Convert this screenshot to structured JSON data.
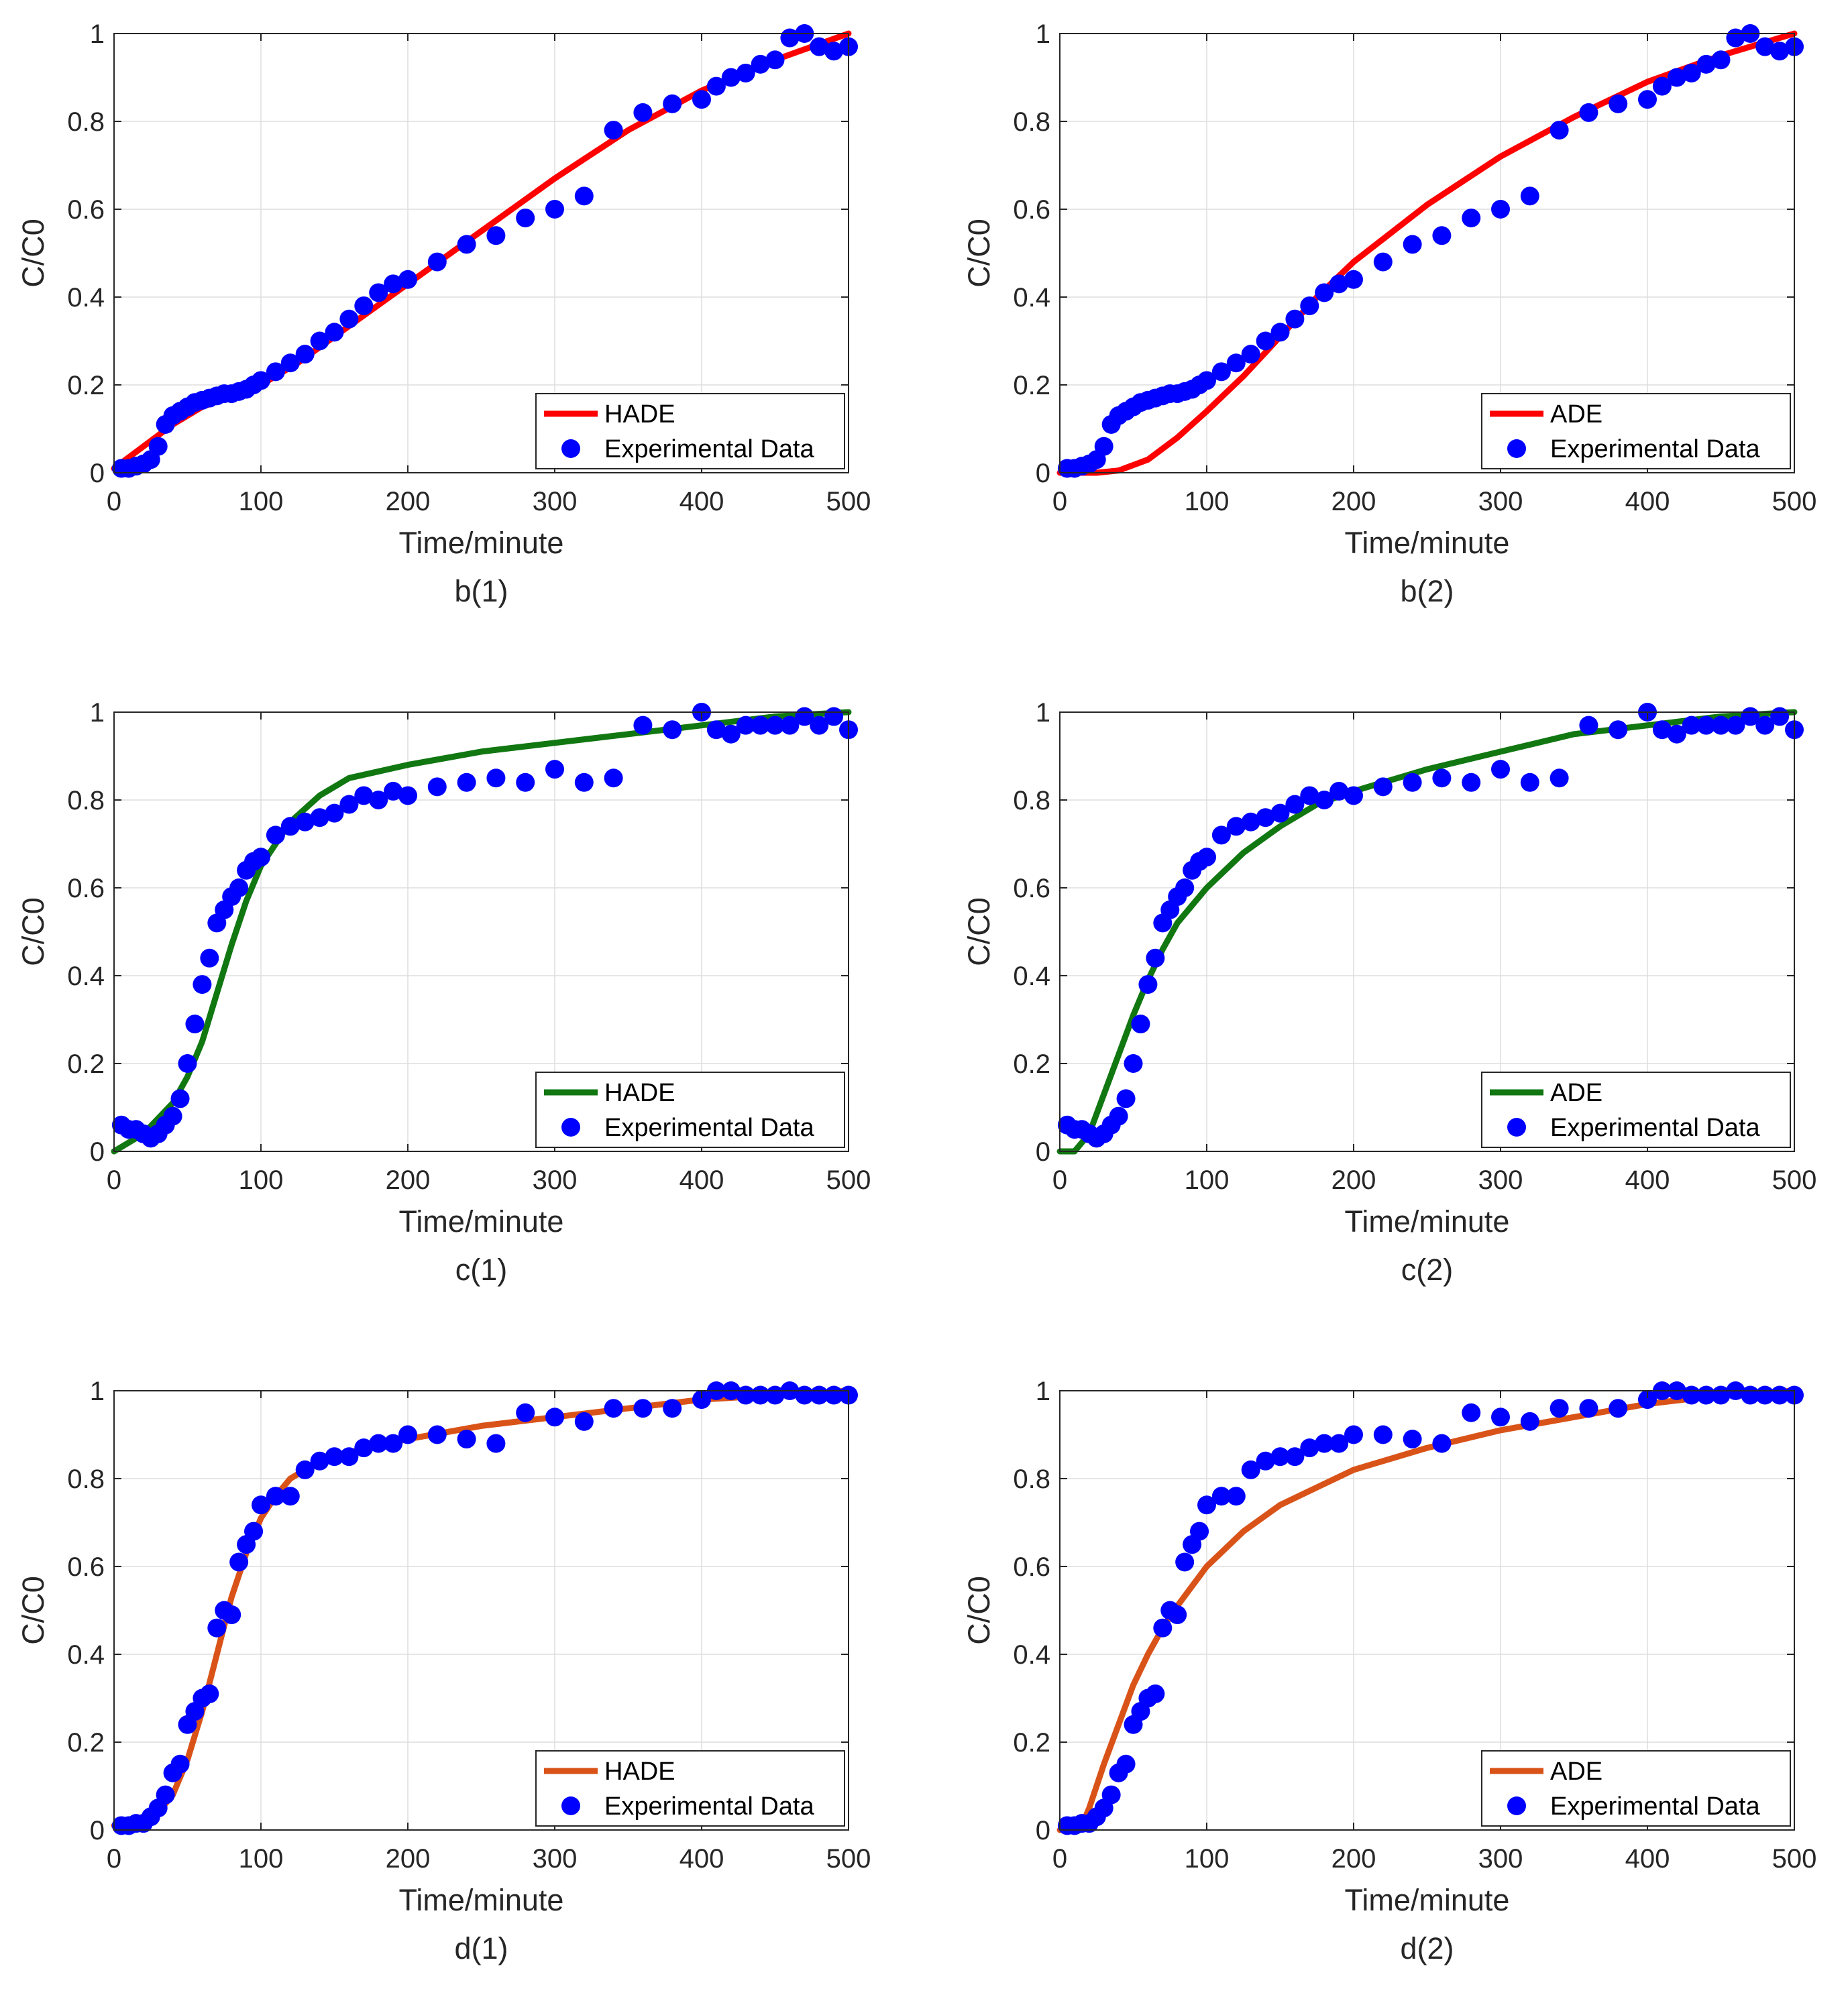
{
  "colors": {
    "red": "#ff0000",
    "green": "#117711",
    "orange": "#d95319",
    "marker": "#0000ff",
    "grid": "#dedede",
    "axis": "#262626"
  },
  "chart_data": [
    {
      "type": "line+scatter",
      "caption": "b(1)",
      "xlabel": "Time/minute",
      "ylabel": "C/C0",
      "xlim": [
        0,
        500
      ],
      "ylim": [
        0,
        1
      ],
      "xticks": [
        0,
        100,
        200,
        300,
        400,
        500
      ],
      "yticks": [
        0,
        0.2,
        0.4,
        0.6,
        0.8,
        1
      ],
      "grid": true,
      "legend_position": "bottom-right",
      "line": {
        "name": "HADE",
        "color_key": "red",
        "x": [
          0,
          20,
          40,
          60,
          80,
          100,
          125,
          150,
          200,
          250,
          300,
          350,
          400,
          450,
          500
        ],
        "y": [
          0.01,
          0.06,
          0.11,
          0.15,
          0.175,
          0.2,
          0.25,
          0.31,
          0.43,
          0.55,
          0.67,
          0.78,
          0.87,
          0.94,
          1.0
        ]
      },
      "points": {
        "name": "Experimental Data",
        "color_key": "marker",
        "x": [
          5,
          10,
          15,
          20,
          25,
          30,
          35,
          40,
          45,
          50,
          55,
          60,
          65,
          70,
          75,
          80,
          85,
          90,
          95,
          100,
          110,
          120,
          130,
          140,
          150,
          160,
          170,
          180,
          190,
          200,
          220,
          240,
          260,
          280,
          300,
          320,
          340,
          360,
          380,
          400,
          410,
          420,
          430,
          440,
          450,
          460,
          470,
          480,
          490,
          500
        ],
        "y": [
          0.01,
          0.01,
          0.015,
          0.02,
          0.03,
          0.06,
          0.11,
          0.13,
          0.14,
          0.15,
          0.16,
          0.165,
          0.17,
          0.175,
          0.18,
          0.18,
          0.185,
          0.19,
          0.2,
          0.21,
          0.23,
          0.25,
          0.27,
          0.3,
          0.32,
          0.35,
          0.38,
          0.41,
          0.43,
          0.44,
          0.48,
          0.52,
          0.54,
          0.58,
          0.6,
          0.63,
          0.78,
          0.82,
          0.84,
          0.85,
          0.88,
          0.9,
          0.91,
          0.93,
          0.94,
          0.99,
          1.0,
          0.97,
          0.96,
          0.97
        ]
      }
    },
    {
      "type": "line+scatter",
      "caption": "b(2)",
      "xlabel": "Time/minute",
      "ylabel": "C/C0",
      "xlim": [
        0,
        500
      ],
      "ylim": [
        0,
        1
      ],
      "xticks": [
        0,
        100,
        200,
        300,
        400,
        500
      ],
      "yticks": [
        0,
        0.2,
        0.4,
        0.6,
        0.8,
        1
      ],
      "grid": true,
      "legend_position": "bottom-right",
      "line": {
        "name": "ADE",
        "color_key": "red",
        "x": [
          0,
          25,
          40,
          60,
          80,
          100,
          125,
          150,
          175,
          200,
          250,
          300,
          350,
          400,
          450,
          500
        ],
        "y": [
          0.0,
          0.0,
          0.005,
          0.03,
          0.08,
          0.14,
          0.22,
          0.31,
          0.4,
          0.48,
          0.61,
          0.72,
          0.81,
          0.89,
          0.95,
          1.0
        ]
      },
      "points": {
        "name": "Experimental Data",
        "color_key": "marker",
        "x": [
          5,
          10,
          15,
          20,
          25,
          30,
          35,
          40,
          45,
          50,
          55,
          60,
          65,
          70,
          75,
          80,
          85,
          90,
          95,
          100,
          110,
          120,
          130,
          140,
          150,
          160,
          170,
          180,
          190,
          200,
          220,
          240,
          260,
          280,
          300,
          320,
          340,
          360,
          380,
          400,
          410,
          420,
          430,
          440,
          450,
          460,
          470,
          480,
          490,
          500
        ],
        "y": [
          0.01,
          0.01,
          0.015,
          0.02,
          0.03,
          0.06,
          0.11,
          0.13,
          0.14,
          0.15,
          0.16,
          0.165,
          0.17,
          0.175,
          0.18,
          0.18,
          0.185,
          0.19,
          0.2,
          0.21,
          0.23,
          0.25,
          0.27,
          0.3,
          0.32,
          0.35,
          0.38,
          0.41,
          0.43,
          0.44,
          0.48,
          0.52,
          0.54,
          0.58,
          0.6,
          0.63,
          0.78,
          0.82,
          0.84,
          0.85,
          0.88,
          0.9,
          0.91,
          0.93,
          0.94,
          0.99,
          1.0,
          0.97,
          0.96,
          0.97
        ]
      }
    },
    {
      "type": "line+scatter",
      "caption": "c(1)",
      "xlabel": "Time/minute",
      "ylabel": "C/C0",
      "xlim": [
        0,
        500
      ],
      "ylim": [
        0,
        1
      ],
      "xticks": [
        0,
        100,
        200,
        300,
        400,
        500
      ],
      "yticks": [
        0,
        0.2,
        0.4,
        0.6,
        0.8,
        1
      ],
      "grid": true,
      "legend_position": "bottom-right",
      "line": {
        "name": "HADE",
        "color_key": "green",
        "x": [
          0,
          20,
          40,
          50,
          60,
          70,
          80,
          90,
          100,
          120,
          140,
          160,
          200,
          250,
          300,
          350,
          400,
          450,
          500
        ],
        "y": [
          0.0,
          0.04,
          0.11,
          0.17,
          0.25,
          0.36,
          0.47,
          0.57,
          0.65,
          0.75,
          0.81,
          0.85,
          0.88,
          0.91,
          0.93,
          0.95,
          0.97,
          0.99,
          1.0
        ]
      },
      "points": {
        "name": "Experimental Data",
        "color_key": "marker",
        "x": [
          5,
          10,
          15,
          20,
          25,
          30,
          35,
          40,
          45,
          50,
          55,
          60,
          65,
          70,
          75,
          80,
          85,
          90,
          95,
          100,
          110,
          120,
          130,
          140,
          150,
          160,
          170,
          180,
          190,
          200,
          220,
          240,
          260,
          280,
          300,
          320,
          340,
          360,
          380,
          400,
          410,
          420,
          430,
          440,
          450,
          460,
          470,
          480,
          490,
          500
        ],
        "y": [
          0.06,
          0.05,
          0.05,
          0.04,
          0.03,
          0.04,
          0.06,
          0.08,
          0.12,
          0.2,
          0.29,
          0.38,
          0.44,
          0.52,
          0.55,
          0.58,
          0.6,
          0.64,
          0.66,
          0.67,
          0.72,
          0.74,
          0.75,
          0.76,
          0.77,
          0.79,
          0.81,
          0.8,
          0.82,
          0.81,
          0.83,
          0.84,
          0.85,
          0.84,
          0.87,
          0.84,
          0.85,
          0.97,
          0.96,
          1.0,
          0.96,
          0.95,
          0.97,
          0.97,
          0.97,
          0.97,
          0.99,
          0.97,
          0.99,
          0.96
        ]
      }
    },
    {
      "type": "line+scatter",
      "caption": "c(2)",
      "xlabel": "Time/minute",
      "ylabel": "C/C0",
      "xlim": [
        0,
        500
      ],
      "ylim": [
        0,
        1
      ],
      "xticks": [
        0,
        100,
        200,
        300,
        400,
        500
      ],
      "yticks": [
        0,
        0.2,
        0.4,
        0.6,
        0.8,
        1
      ],
      "grid": true,
      "legend_position": "bottom-right",
      "line": {
        "name": "ADE",
        "color_key": "green",
        "x": [
          0,
          10,
          20,
          30,
          40,
          50,
          60,
          70,
          80,
          100,
          125,
          150,
          175,
          200,
          250,
          300,
          350,
          400,
          450,
          500
        ],
        "y": [
          0.0,
          0.0,
          0.04,
          0.13,
          0.22,
          0.31,
          0.39,
          0.46,
          0.52,
          0.6,
          0.68,
          0.74,
          0.79,
          0.82,
          0.87,
          0.91,
          0.95,
          0.97,
          0.99,
          1.0
        ]
      },
      "points": {
        "name": "Experimental Data",
        "color_key": "marker",
        "x": [
          5,
          10,
          15,
          20,
          25,
          30,
          35,
          40,
          45,
          50,
          55,
          60,
          65,
          70,
          75,
          80,
          85,
          90,
          95,
          100,
          110,
          120,
          130,
          140,
          150,
          160,
          170,
          180,
          190,
          200,
          220,
          240,
          260,
          280,
          300,
          320,
          340,
          360,
          380,
          400,
          410,
          420,
          430,
          440,
          450,
          460,
          470,
          480,
          490,
          500
        ],
        "y": [
          0.06,
          0.05,
          0.05,
          0.04,
          0.03,
          0.04,
          0.06,
          0.08,
          0.12,
          0.2,
          0.29,
          0.38,
          0.44,
          0.52,
          0.55,
          0.58,
          0.6,
          0.64,
          0.66,
          0.67,
          0.72,
          0.74,
          0.75,
          0.76,
          0.77,
          0.79,
          0.81,
          0.8,
          0.82,
          0.81,
          0.83,
          0.84,
          0.85,
          0.84,
          0.87,
          0.84,
          0.85,
          0.97,
          0.96,
          1.0,
          0.96,
          0.95,
          0.97,
          0.97,
          0.97,
          0.97,
          0.99,
          0.97,
          0.99,
          0.96
        ]
      }
    },
    {
      "type": "line+scatter",
      "caption": "d(1)",
      "xlabel": "Time/minute",
      "ylabel": "C/C0",
      "xlim": [
        0,
        500
      ],
      "ylim": [
        0,
        1
      ],
      "xticks": [
        0,
        100,
        200,
        300,
        400,
        500
      ],
      "yticks": [
        0,
        0.2,
        0.4,
        0.6,
        0.8,
        1
      ],
      "grid": true,
      "legend_position": "bottom-right",
      "line": {
        "name": "HADE",
        "color_key": "orange",
        "x": [
          0,
          20,
          30,
          40,
          50,
          60,
          70,
          80,
          90,
          100,
          110,
          120,
          140,
          160,
          200,
          250,
          300,
          350,
          400,
          450,
          500
        ],
        "y": [
          0.01,
          0.02,
          0.04,
          0.08,
          0.16,
          0.27,
          0.4,
          0.53,
          0.63,
          0.71,
          0.76,
          0.8,
          0.84,
          0.86,
          0.89,
          0.92,
          0.94,
          0.96,
          0.98,
          0.99,
          1.0
        ]
      },
      "points": {
        "name": "Experimental Data",
        "color_key": "marker",
        "x": [
          5,
          10,
          15,
          20,
          25,
          30,
          35,
          40,
          45,
          50,
          55,
          60,
          65,
          70,
          75,
          80,
          85,
          90,
          95,
          100,
          110,
          120,
          130,
          140,
          150,
          160,
          170,
          180,
          190,
          200,
          220,
          240,
          260,
          280,
          300,
          320,
          340,
          360,
          380,
          400,
          410,
          420,
          430,
          440,
          450,
          460,
          470,
          480,
          490,
          500
        ],
        "y": [
          0.01,
          0.01,
          0.015,
          0.015,
          0.03,
          0.05,
          0.08,
          0.13,
          0.15,
          0.24,
          0.27,
          0.3,
          0.31,
          0.46,
          0.5,
          0.49,
          0.61,
          0.65,
          0.68,
          0.74,
          0.76,
          0.76,
          0.82,
          0.84,
          0.85,
          0.85,
          0.87,
          0.88,
          0.88,
          0.9,
          0.9,
          0.89,
          0.88,
          0.95,
          0.94,
          0.93,
          0.96,
          0.96,
          0.96,
          0.98,
          1.0,
          1.0,
          0.99,
          0.99,
          0.99,
          1.0,
          0.99,
          0.99,
          0.99,
          0.99
        ]
      }
    },
    {
      "type": "line+scatter",
      "caption": "d(2)",
      "xlabel": "Time/minute",
      "ylabel": "C/C0",
      "xlim": [
        0,
        500
      ],
      "ylim": [
        0,
        1
      ],
      "xticks": [
        0,
        100,
        200,
        300,
        400,
        500
      ],
      "yticks": [
        0,
        0.2,
        0.4,
        0.6,
        0.8,
        1
      ],
      "grid": true,
      "legend_position": "bottom-right",
      "line": {
        "name": "ADE",
        "color_key": "orange",
        "x": [
          0,
          10,
          15,
          20,
          30,
          40,
          50,
          60,
          70,
          80,
          100,
          125,
          150,
          175,
          200,
          250,
          300,
          350,
          400,
          450,
          500
        ],
        "y": [
          0.0,
          0.0,
          0.01,
          0.05,
          0.15,
          0.24,
          0.33,
          0.4,
          0.46,
          0.51,
          0.6,
          0.68,
          0.74,
          0.78,
          0.82,
          0.87,
          0.91,
          0.94,
          0.97,
          0.99,
          1.0
        ]
      },
      "points": {
        "name": "Experimental Data",
        "color_key": "marker",
        "x": [
          5,
          10,
          15,
          20,
          25,
          30,
          35,
          40,
          45,
          50,
          55,
          60,
          65,
          70,
          75,
          80,
          85,
          90,
          95,
          100,
          110,
          120,
          130,
          140,
          150,
          160,
          170,
          180,
          190,
          200,
          220,
          240,
          260,
          280,
          300,
          320,
          340,
          360,
          380,
          400,
          410,
          420,
          430,
          440,
          450,
          460,
          470,
          480,
          490,
          500
        ],
        "y": [
          0.01,
          0.01,
          0.015,
          0.015,
          0.03,
          0.05,
          0.08,
          0.13,
          0.15,
          0.24,
          0.27,
          0.3,
          0.31,
          0.46,
          0.5,
          0.49,
          0.61,
          0.65,
          0.68,
          0.74,
          0.76,
          0.76,
          0.82,
          0.84,
          0.85,
          0.85,
          0.87,
          0.88,
          0.88,
          0.9,
          0.9,
          0.89,
          0.88,
          0.95,
          0.94,
          0.93,
          0.96,
          0.96,
          0.96,
          0.98,
          1.0,
          1.0,
          0.99,
          0.99,
          0.99,
          1.0,
          0.99,
          0.99,
          0.99,
          0.99
        ]
      }
    }
  ]
}
